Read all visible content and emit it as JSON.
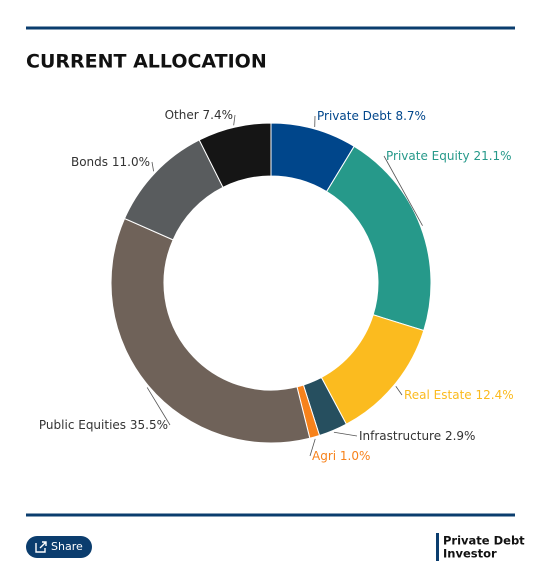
{
  "chart_data": {
    "type": "pie",
    "title": "CURRENT ALLOCATION",
    "categories": [
      "Private Debt",
      "Private Equity",
      "Real Estate",
      "Infrastructure",
      "Agri",
      "Public Equities",
      "Bonds",
      "Other"
    ],
    "values": [
      8.7,
      21.1,
      12.4,
      2.9,
      1.0,
      35.5,
      11.0,
      7.4
    ],
    "value_labels": [
      "8.7%",
      "21.1%",
      "12.4%",
      "2.9%",
      "1.0%",
      "35.5%",
      "11.0%",
      "7.4%"
    ],
    "colors": [
      "#00468b",
      "#26998a",
      "#fbbb1f",
      "#264f5f",
      "#f7821b",
      "#6f6259",
      "#595c5e",
      "#151515"
    ],
    "label_colors": [
      "#00468b",
      "#26998a",
      "#fbbb1f",
      "#333333",
      "#f7821b",
      "#333333",
      "#333333",
      "#333333"
    ]
  },
  "share_button": "Share",
  "logo": {
    "line1": "Private Debt",
    "line2": "Investor"
  }
}
